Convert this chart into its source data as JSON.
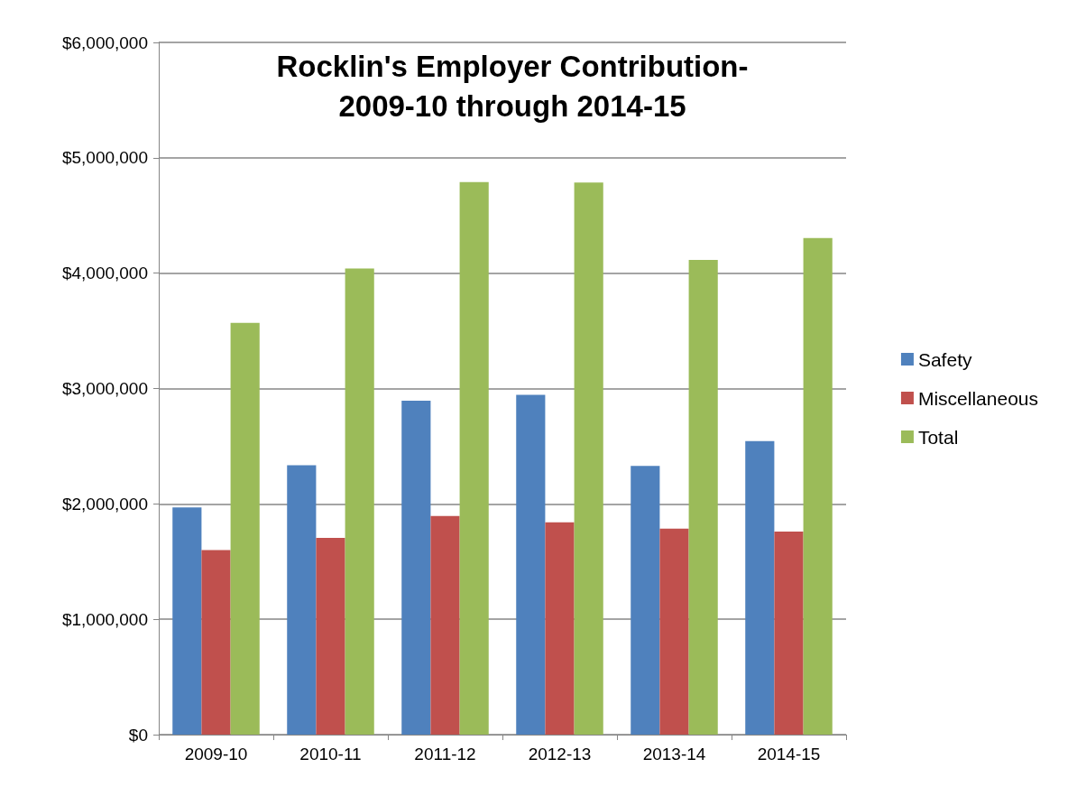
{
  "chart_data": {
    "type": "bar",
    "title": "Rocklin's Employer Contribution-\n2009-10 through 2014-15",
    "categories": [
      "2009-10",
      "2010-11",
      "2011-12",
      "2012-13",
      "2013-14",
      "2014-15"
    ],
    "series": [
      {
        "name": "Safety",
        "color": "#4f81bd",
        "values": [
          1970000,
          2335000,
          2895000,
          2945000,
          2330000,
          2545000
        ]
      },
      {
        "name": "Miscellaneous",
        "color": "#c0504d",
        "values": [
          1600000,
          1705000,
          1895000,
          1840000,
          1785000,
          1760000
        ]
      },
      {
        "name": "Total",
        "color": "#9bbb59",
        "values": [
          3570000,
          4040000,
          4790000,
          4785000,
          4115000,
          4305000
        ]
      }
    ],
    "ylim": [
      0,
      6000000
    ],
    "yticks": [
      {
        "value": 0,
        "label": "$0"
      },
      {
        "value": 1000000,
        "label": "$1,000,000"
      },
      {
        "value": 2000000,
        "label": "$2,000,000"
      },
      {
        "value": 3000000,
        "label": "$3,000,000"
      },
      {
        "value": 4000000,
        "label": "$4,000,000"
      },
      {
        "value": 5000000,
        "label": "$5,000,000"
      },
      {
        "value": 6000000,
        "label": "$6,000,000"
      }
    ],
    "grid": "y",
    "legend": "right"
  }
}
